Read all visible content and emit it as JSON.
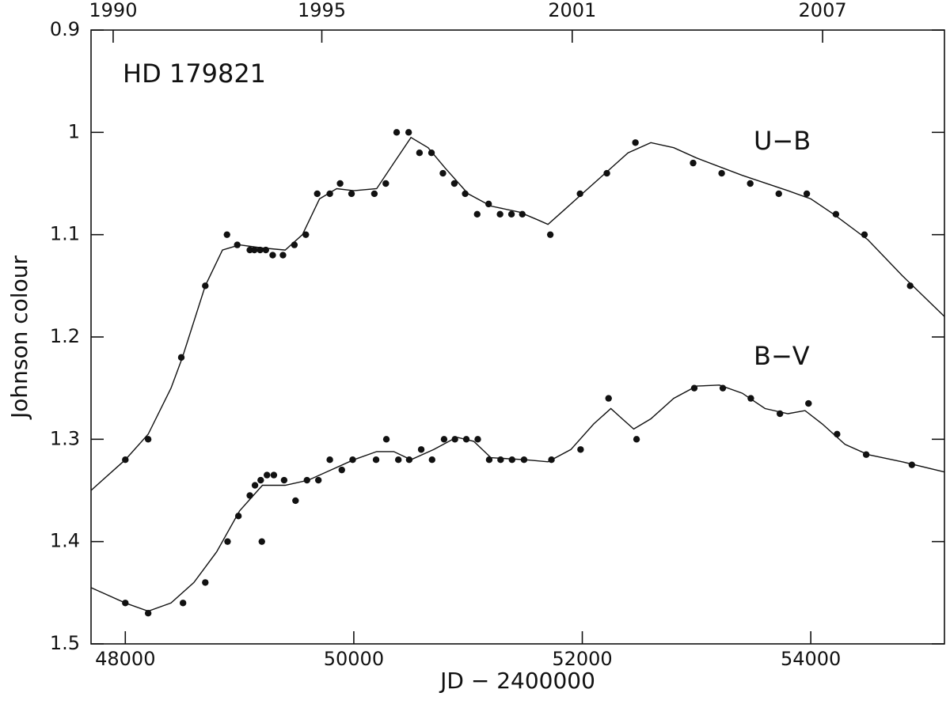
{
  "chart_data": {
    "type": "scatter",
    "annotation": "HD 179821",
    "xlabel": "JD − 2400000",
    "ylabel": "Johnson colour",
    "xlim": [
      47700,
      55170
    ],
    "xticks": [
      48000,
      50000,
      52000,
      54000
    ],
    "x2lim": [
      1989.47,
      2009.92
    ],
    "x2ticks": [
      1990,
      1995,
      2001,
      2007
    ],
    "ylim": [
      0.9,
      1.5
    ],
    "y_inverted": true,
    "yticks": [
      0.9,
      1,
      1.1,
      1.2,
      1.3,
      1.4,
      1.5
    ],
    "grid": false,
    "series": [
      {
        "name": "U−B",
        "color": "#111111",
        "x": [
          48000,
          48200,
          48490,
          48700,
          48890,
          48980,
          49090,
          49130,
          49180,
          49230,
          49290,
          49380,
          49480,
          49580,
          49680,
          49790,
          49880,
          49980,
          50180,
          50280,
          50375,
          50480,
          50575,
          50680,
          50780,
          50880,
          50975,
          51080,
          51180,
          51280,
          51380,
          51475,
          51720,
          51980,
          52215,
          52465,
          52970,
          53220,
          53470,
          53720,
          53965,
          54220,
          54470,
          54870
        ],
        "values": [
          1.32,
          1.3,
          1.22,
          1.15,
          1.1,
          1.11,
          1.115,
          1.115,
          1.115,
          1.115,
          1.12,
          1.12,
          1.11,
          1.1,
          1.06,
          1.06,
          1.05,
          1.06,
          1.06,
          1.05,
          1.0,
          1.0,
          1.02,
          1.02,
          1.04,
          1.05,
          1.06,
          1.08,
          1.07,
          1.08,
          1.08,
          1.08,
          1.1,
          1.06,
          1.04,
          1.01,
          1.03,
          1.04,
          1.05,
          1.06,
          1.06,
          1.08,
          1.1,
          1.15
        ],
        "curve_x": [
          47700,
          48000,
          48200,
          48400,
          48500,
          48700,
          48850,
          49000,
          49200,
          49400,
          49550,
          49700,
          49850,
          50000,
          50200,
          50350,
          50500,
          50650,
          50800,
          51000,
          51200,
          51450,
          51600,
          51700,
          51850,
          52000,
          52200,
          52400,
          52600,
          52800,
          53000,
          53400,
          53800,
          54000,
          54200,
          54500,
          54800,
          55170
        ],
        "curve_values": [
          1.35,
          1.32,
          1.295,
          1.25,
          1.22,
          1.15,
          1.115,
          1.11,
          1.113,
          1.115,
          1.1,
          1.065,
          1.055,
          1.057,
          1.055,
          1.03,
          1.005,
          1.015,
          1.035,
          1.06,
          1.072,
          1.078,
          1.085,
          1.09,
          1.075,
          1.06,
          1.04,
          1.02,
          1.01,
          1.015,
          1.025,
          1.042,
          1.057,
          1.065,
          1.08,
          1.105,
          1.14,
          1.18
        ]
      },
      {
        "name": "B−V",
        "color": "#111111",
        "x": [
          48000,
          48200,
          48505,
          48700,
          48895,
          48990,
          49090,
          49135,
          49185,
          49195,
          49240,
          49300,
          49390,
          49490,
          49590,
          49690,
          49790,
          49895,
          49990,
          50195,
          50285,
          50390,
          50485,
          50590,
          50685,
          50790,
          50885,
          50985,
          51085,
          51185,
          51285,
          51385,
          51490,
          51730,
          51985,
          52230,
          52475,
          52980,
          53230,
          53475,
          53730,
          53980,
          54230,
          54485,
          54885
        ],
        "values": [
          1.46,
          1.47,
          1.46,
          1.44,
          1.4,
          1.375,
          1.355,
          1.345,
          1.34,
          1.4,
          1.335,
          1.335,
          1.34,
          1.36,
          1.34,
          1.34,
          1.32,
          1.33,
          1.32,
          1.32,
          1.3,
          1.32,
          1.32,
          1.31,
          1.32,
          1.3,
          1.3,
          1.3,
          1.3,
          1.32,
          1.32,
          1.32,
          1.32,
          1.32,
          1.31,
          1.26,
          1.3,
          1.25,
          1.25,
          1.26,
          1.275,
          1.265,
          1.295,
          1.315,
          1.325
        ],
        "curve_x": [
          47700,
          48000,
          48200,
          48400,
          48600,
          48800,
          49000,
          49200,
          49400,
          49600,
          49800,
          50000,
          50200,
          50350,
          50500,
          50700,
          50900,
          51050,
          51200,
          51500,
          51700,
          51900,
          52100,
          52250,
          52350,
          52450,
          52600,
          52800,
          53000,
          53200,
          53400,
          53600,
          53800,
          53950,
          54100,
          54300,
          54500,
          54800,
          55170
        ],
        "curve_values": [
          1.445,
          1.46,
          1.468,
          1.46,
          1.44,
          1.41,
          1.37,
          1.345,
          1.345,
          1.34,
          1.33,
          1.32,
          1.312,
          1.312,
          1.32,
          1.31,
          1.298,
          1.302,
          1.318,
          1.32,
          1.322,
          1.31,
          1.285,
          1.27,
          1.28,
          1.29,
          1.28,
          1.26,
          1.248,
          1.247,
          1.255,
          1.27,
          1.275,
          1.272,
          1.285,
          1.305,
          1.315,
          1.322,
          1.332
        ]
      }
    ]
  }
}
